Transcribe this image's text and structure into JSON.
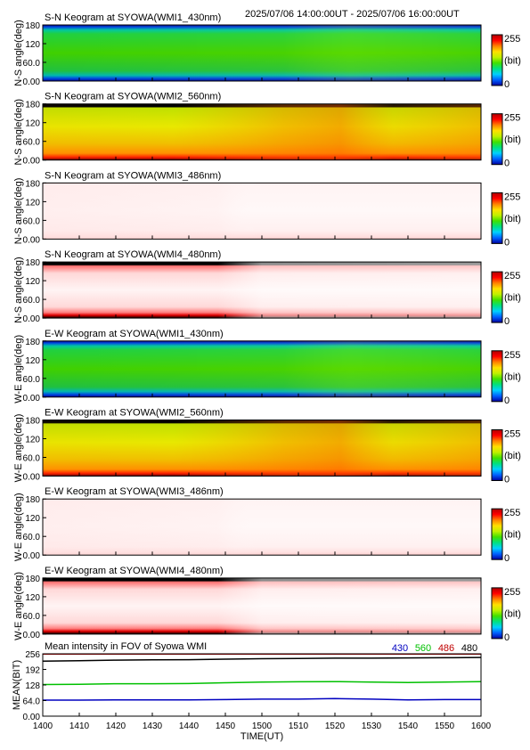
{
  "header": {
    "time_range": "2025/07/06 14:00:00UT - 2025/07/06 16:00:00UT"
  },
  "colorbar": {
    "max_label": "255",
    "unit_label": "(bit)",
    "min_label": "0",
    "colors": [
      "#0000a0",
      "#0060ff",
      "#00d0ff",
      "#00e080",
      "#40e000",
      "#c0f000",
      "#ffe000",
      "#ff8000",
      "#ff0000",
      "#b00000"
    ]
  },
  "chart_data": [
    {
      "type": "heatmap",
      "title": "S-N Keogram at SYOWA(WMI1_430nm)",
      "ylabel": "N-S angle(deg)",
      "ylim": [
        0,
        180
      ],
      "yticks": [
        "0.00",
        "60.0",
        "120",
        "180"
      ],
      "cmap_range": [
        0,
        255
      ],
      "pattern": "green"
    },
    {
      "type": "heatmap",
      "title": "S-N Keogram at SYOWA(WMI2_560nm)",
      "ylabel": "N-S angle(deg)",
      "ylim": [
        0,
        180
      ],
      "yticks": [
        "0.00",
        "60.0",
        "120",
        "180"
      ],
      "cmap_range": [
        0,
        255
      ],
      "pattern": "yellow"
    },
    {
      "type": "heatmap",
      "title": "S-N Keogram at SYOWA(WMI3_486nm)",
      "ylabel": "N-S angle(deg)",
      "ylim": [
        0,
        180
      ],
      "yticks": [
        "0.00",
        "60.0",
        "120",
        "180"
      ],
      "cmap_range": [
        0,
        255
      ],
      "pattern": "white"
    },
    {
      "type": "heatmap",
      "title": "S-N Keogram at SYOWA(WMI4_480nm)",
      "ylabel": "N-S angle(deg)",
      "ylim": [
        0,
        180
      ],
      "yticks": [
        "0.00",
        "60.0",
        "120",
        "180"
      ],
      "cmap_range": [
        0,
        255
      ],
      "pattern": "pink"
    },
    {
      "type": "heatmap",
      "title": "E-W Keogram at SYOWA(WMI1_430nm)",
      "ylabel": "W-E angle(deg)",
      "ylim": [
        0,
        180
      ],
      "yticks": [
        "0.00",
        "60.0",
        "120",
        "180"
      ],
      "cmap_range": [
        0,
        255
      ],
      "pattern": "green"
    },
    {
      "type": "heatmap",
      "title": "E-W Keogram at SYOWA(WMI2_560nm)",
      "ylabel": "W-E angle(deg)",
      "ylim": [
        0,
        180
      ],
      "yticks": [
        "0.00",
        "60.0",
        "120",
        "180"
      ],
      "cmap_range": [
        0,
        255
      ],
      "pattern": "yellow"
    },
    {
      "type": "heatmap",
      "title": "E-W Keogram at SYOWA(WMI3_486nm)",
      "ylabel": "W-E angle(deg)",
      "ylim": [
        0,
        180
      ],
      "yticks": [
        "0.00",
        "60.0",
        "120",
        "180"
      ],
      "cmap_range": [
        0,
        255
      ],
      "pattern": "white"
    },
    {
      "type": "heatmap",
      "title": "E-W Keogram at SYOWA(WMI4_480nm)",
      "ylabel": "W-E angle(deg)",
      "ylim": [
        0,
        180
      ],
      "yticks": [
        "0.00",
        "60.0",
        "120",
        "180"
      ],
      "cmap_range": [
        0,
        255
      ],
      "pattern": "pink"
    },
    {
      "type": "line",
      "title": "Mean intensity in FOV of Syowa WMI",
      "ylabel": "MEAN(BIT)",
      "xlabel": "TIME(UT)",
      "ylim": [
        0,
        256
      ],
      "yticks": [
        "0.00",
        "64.0",
        "128",
        "192",
        "256"
      ],
      "xticks": [
        "1400",
        "1410",
        "1420",
        "1430",
        "1440",
        "1450",
        "1500",
        "1510",
        "1520",
        "1530",
        "1540",
        "1550",
        "1600"
      ],
      "x": [
        0,
        10,
        20,
        30,
        40,
        50,
        60,
        70,
        80,
        90,
        100,
        110,
        120
      ],
      "series": [
        {
          "name": "430",
          "color": "#0000c0",
          "values": [
            66,
            66,
            67,
            67,
            67,
            68,
            70,
            70,
            72,
            70,
            67,
            68,
            68
          ]
        },
        {
          "name": "560",
          "color": "#00c000",
          "values": [
            130,
            131,
            133,
            133,
            134,
            137,
            140,
            141,
            142,
            140,
            138,
            140,
            142
          ]
        },
        {
          "name": "486",
          "color": "#c00000",
          "values": [
            255,
            255,
            255,
            255,
            255,
            255,
            255,
            255,
            255,
            255,
            255,
            255,
            255
          ]
        },
        {
          "name": "480",
          "color": "#000000",
          "values": [
            226,
            228,
            230,
            231,
            232,
            234,
            236,
            237,
            238,
            238,
            239,
            240,
            241
          ]
        }
      ]
    }
  ]
}
